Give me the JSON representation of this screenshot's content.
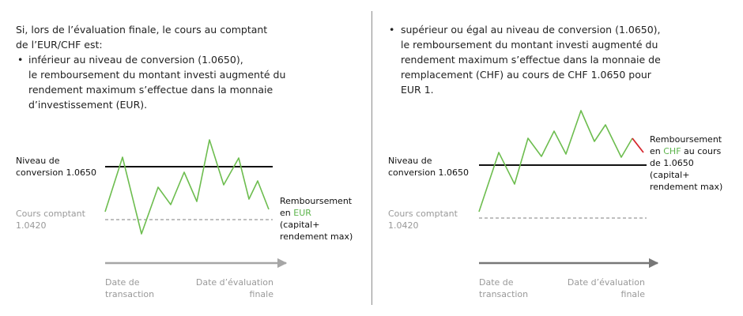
{
  "left": {
    "intro_line1": "Si, lors de l’évaluation finale, le cours au comptant",
    "intro_line2": "de l’EUR/CHF est:",
    "bullet_symbol": "•",
    "bullet_lines": [
      "inférieur au niveau de conversion (1.0650),",
      "le remboursement du montant investi augmenté du",
      "rendement maximum s’effectue dans la monnaie",
      "d’investissement (EUR)."
    ],
    "level_label": [
      "Niveau de",
      "conversion 1.0650"
    ],
    "spot_label": [
      "Cours comptant",
      "1.0420"
    ],
    "repay_line1": "Remboursement",
    "repay_prefix": "en ",
    "repay_currency": "EUR",
    "repay_line3": "(capital+",
    "repay_line4": "rendement max)",
    "axis_start": [
      "Date de",
      "transaction"
    ],
    "axis_end": [
      "Date d’évaluation",
      "finale"
    ]
  },
  "right": {
    "bullet_symbol": "•",
    "bullet_lines": [
      "supérieur ou égal au niveau de conversion (1.0650),",
      "le remboursement du montant investi augmenté du",
      "rendement maximum s’effectue dans la monnaie de",
      "remplacement (CHF) au cours de CHF 1.0650 pour",
      "EUR 1."
    ],
    "level_label": [
      "Niveau de",
      "conversion 1.0650"
    ],
    "spot_label": [
      "Cours comptant",
      "1.0420"
    ],
    "repay_line1": "Remboursement",
    "repay_prefix": "en ",
    "repay_currency": "CHF",
    "repay_suffix": " au cours",
    "repay_line3": "de 1.0650",
    "repay_line4": "(capital+",
    "repay_line5": "rendement max)",
    "axis_start": [
      "Date de",
      "transaction"
    ],
    "axis_end": [
      "Date d’évaluation",
      "finale"
    ]
  },
  "colors": {
    "price_path": "#6dbd4f",
    "final_segment_right": "#d6262e",
    "conversion_line": "#111111",
    "spot_line": "#999999",
    "time_axis": "#a6a6a6"
  }
}
